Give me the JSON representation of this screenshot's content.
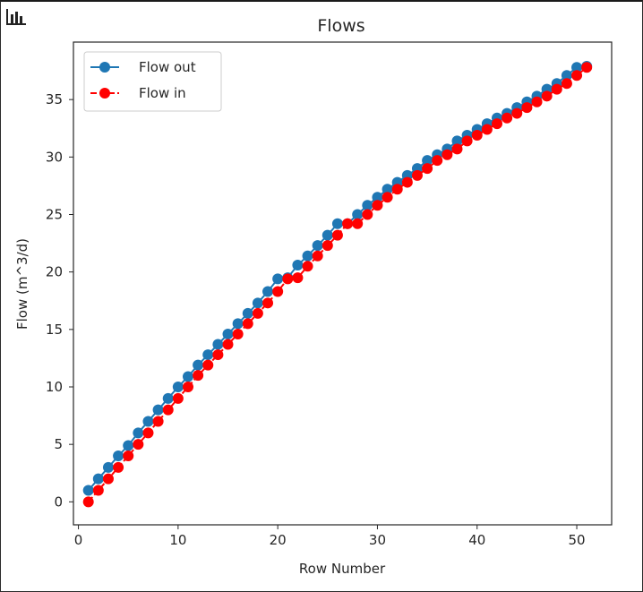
{
  "toolbar": {
    "icon": "bar-chart-icon"
  },
  "chart_data": {
    "type": "line",
    "title": "Flows",
    "xlabel": "Row Number",
    "ylabel": "Flow (m^3/d)",
    "xlim": [
      -0.5,
      53.5
    ],
    "ylim": [
      -2.0,
      40.0
    ],
    "xticks": [
      0,
      10,
      20,
      30,
      40,
      50
    ],
    "yticks": [
      0,
      5,
      10,
      15,
      20,
      25,
      30,
      35
    ],
    "grid": false,
    "legend": "top-left",
    "x": [
      1,
      2,
      3,
      4,
      5,
      6,
      7,
      8,
      9,
      10,
      11,
      12,
      13,
      14,
      15,
      16,
      17,
      18,
      19,
      20,
      21,
      22,
      23,
      24,
      25,
      26,
      27,
      28,
      29,
      30,
      31,
      32,
      33,
      34,
      35,
      36,
      37,
      38,
      39,
      40,
      41,
      42,
      43,
      44,
      45,
      46,
      47,
      48,
      49,
      50,
      51
    ],
    "series": [
      {
        "name": "Flow out",
        "color": "#1f77b4",
        "linestyle": "solid",
        "marker": "circle",
        "values": [
          1.0,
          2.0,
          3.0,
          4.0,
          4.9,
          6.0,
          7.0,
          8.0,
          9.0,
          10.0,
          10.9,
          11.9,
          12.8,
          13.7,
          14.6,
          15.5,
          16.4,
          17.3,
          18.3,
          19.4,
          19.5,
          20.6,
          21.4,
          22.3,
          23.2,
          24.2,
          24.2,
          25.0,
          25.8,
          26.5,
          27.2,
          27.8,
          28.4,
          29.0,
          29.7,
          30.2,
          30.7,
          31.4,
          31.9,
          32.4,
          32.9,
          33.4,
          33.8,
          34.3,
          34.8,
          35.3,
          35.9,
          36.4,
          37.1,
          37.8,
          37.9
        ]
      },
      {
        "name": "Flow in",
        "color": "#ff0000",
        "linestyle": "dashed",
        "marker": "circle",
        "values": [
          0.0,
          1.0,
          2.0,
          3.0,
          4.0,
          5.0,
          6.0,
          7.0,
          8.0,
          9.0,
          10.0,
          11.0,
          11.9,
          12.8,
          13.7,
          14.6,
          15.5,
          16.4,
          17.3,
          18.3,
          19.4,
          19.5,
          20.5,
          21.4,
          22.3,
          23.2,
          24.2,
          24.2,
          25.0,
          25.8,
          26.5,
          27.2,
          27.8,
          28.4,
          29.0,
          29.7,
          30.2,
          30.7,
          31.4,
          31.9,
          32.4,
          32.9,
          33.4,
          33.8,
          34.3,
          34.8,
          35.3,
          35.9,
          36.4,
          37.1,
          37.8
        ]
      }
    ]
  }
}
